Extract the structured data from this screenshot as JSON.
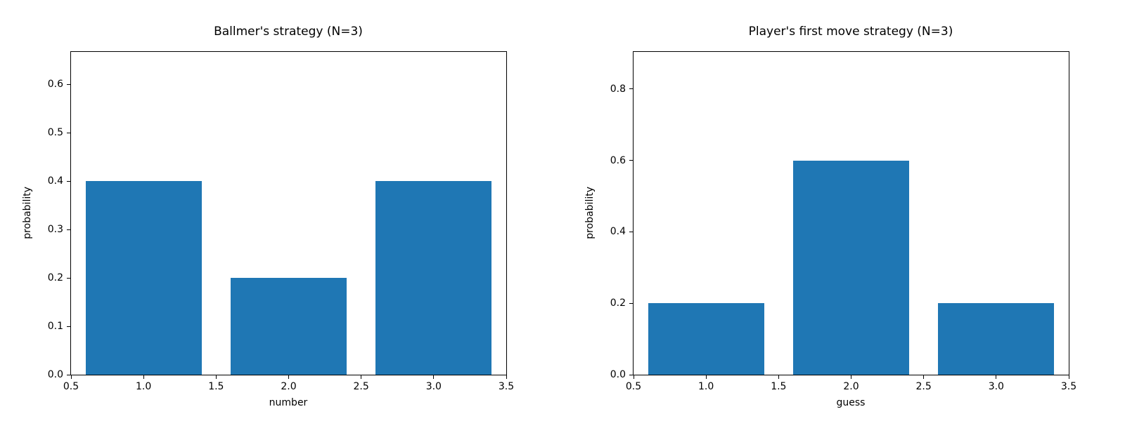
{
  "figure": {
    "background": "#ffffff",
    "bar_color": "#1f77b4",
    "axis_color": "#000000",
    "text_color": "#000000"
  },
  "chart_data": [
    {
      "type": "bar",
      "title": "Ballmer's strategy (N=3)",
      "xlabel": "number",
      "ylabel": "probability",
      "x": [
        1.0,
        2.0,
        3.0
      ],
      "values": [
        0.4,
        0.2,
        0.4
      ],
      "bar_width": 0.8,
      "xlim": [
        0.5,
        3.5
      ],
      "ylim": [
        0,
        0.667
      ],
      "xticks": [
        "0.5",
        "1.0",
        "1.5",
        "2.0",
        "2.5",
        "3.0",
        "3.5"
      ],
      "yticks": [
        "0.0",
        "0.1",
        "0.2",
        "0.3",
        "0.4",
        "0.5",
        "0.6"
      ],
      "grid": false,
      "legend": null
    },
    {
      "type": "bar",
      "title": "Player's first move strategy (N=3)",
      "xlabel": "guess",
      "ylabel": "probability",
      "x": [
        1.0,
        2.0,
        3.0
      ],
      "values": [
        0.2,
        0.6,
        0.2
      ],
      "bar_width": 0.8,
      "xlim": [
        0.5,
        3.5
      ],
      "ylim": [
        0,
        0.904
      ],
      "xticks": [
        "0.5",
        "1.0",
        "1.5",
        "2.0",
        "2.5",
        "3.0",
        "3.5"
      ],
      "yticks": [
        "0.0",
        "0.2",
        "0.4",
        "0.6",
        "0.8"
      ],
      "grid": false,
      "legend": null
    }
  ]
}
